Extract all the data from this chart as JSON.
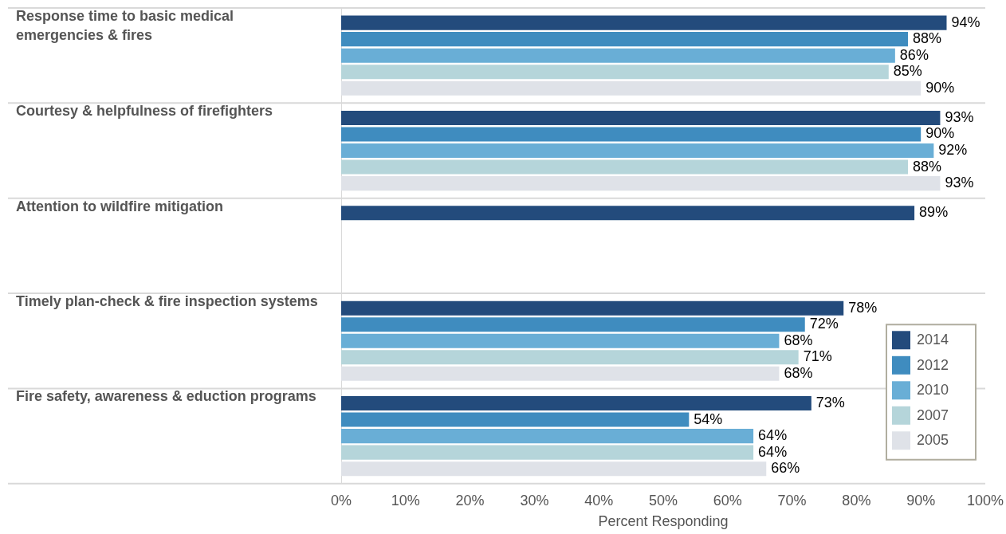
{
  "chart_data": {
    "type": "bar",
    "orientation": "horizontal",
    "xlabel": "Percent Responding",
    "categories": [
      "Response time to basic medical emergencies & fires",
      "Courtesy & helpfulness of firefighters",
      "Attention to wildfire mitigation",
      "Timely plan-check & fire inspection systems",
      "Fire safety, awareness & eduction programs"
    ],
    "series": [
      {
        "name": "2014",
        "color": "#234b7c",
        "values": [
          94,
          93,
          89,
          78,
          73
        ],
        "value_labels": [
          "94%",
          "93%",
          "89%",
          "78%",
          "73%"
        ]
      },
      {
        "name": "2012",
        "color": "#3f8cbf",
        "values": [
          88,
          90,
          0,
          72,
          54
        ],
        "value_labels": [
          "88%",
          "90%",
          null,
          "72%",
          "54%"
        ]
      },
      {
        "name": "2010",
        "color": "#69aed6",
        "values": [
          86,
          92,
          0,
          68,
          64
        ],
        "value_labels": [
          "86%",
          "92%",
          null,
          "68%",
          "64%"
        ]
      },
      {
        "name": "2007",
        "color": "#b5d5da",
        "values": [
          85,
          88,
          0,
          71,
          64
        ],
        "value_labels": [
          "85%",
          "88%",
          null,
          "71%",
          "64%"
        ]
      },
      {
        "name": "2005",
        "color": "#dfe2e8",
        "values": [
          90,
          93,
          null,
          68,
          66
        ],
        "value_labels": [
          "90%",
          "93%",
          null,
          "68%",
          "66%"
        ]
      }
    ],
    "xlim": [
      0,
      100
    ],
    "xticks": [
      {
        "value": 0,
        "label": "0%"
      },
      {
        "value": 10,
        "label": "10%"
      },
      {
        "value": 20,
        "label": "20%"
      },
      {
        "value": 30,
        "label": "30%"
      },
      {
        "value": 40,
        "label": "40%"
      },
      {
        "value": 50,
        "label": "50%"
      },
      {
        "value": 60,
        "label": "60%"
      },
      {
        "value": 70,
        "label": "70%"
      },
      {
        "value": 80,
        "label": "80%"
      },
      {
        "value": 90,
        "label": "90%"
      },
      {
        "value": 100,
        "label": "100%"
      }
    ],
    "legend": "bottom right"
  }
}
